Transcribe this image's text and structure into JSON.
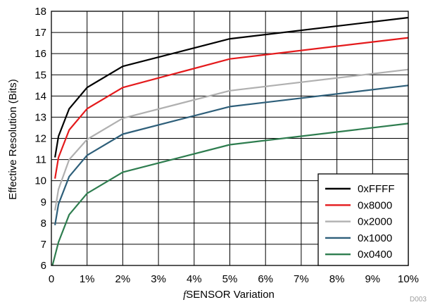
{
  "chart_data": {
    "type": "line",
    "xlabel_prefix": "f",
    "xlabel": "SENSOR  Variation",
    "ylabel": "Effective  Resolution (Bits)",
    "figure_code": "D003",
    "xlim": [
      0,
      10
    ],
    "ylim": [
      6,
      18
    ],
    "x_ticks": [
      "0",
      "1%",
      "2%",
      "3%",
      "4%",
      "5%",
      "6%",
      "7%",
      "8%",
      "9%",
      "10%"
    ],
    "y_ticks": [
      "6",
      "7",
      "8",
      "9",
      "10",
      "11",
      "12",
      "13",
      "14",
      "15",
      "16",
      "17",
      "18"
    ],
    "grid": true,
    "legend_position": "bottom-right",
    "series": [
      {
        "name": "0xFFFF",
        "color": "#000000",
        "x": [
          0.1,
          0.2,
          0.5,
          1,
          2,
          5,
          10
        ],
        "y": [
          11.1,
          12.1,
          13.4,
          14.4,
          15.4,
          16.7,
          17.7
        ]
      },
      {
        "name": "0x8000",
        "color": "#e41a1c",
        "x": [
          0.1,
          0.2,
          0.5,
          1,
          2,
          5,
          10
        ],
        "y": [
          10.1,
          11.1,
          12.4,
          13.4,
          14.4,
          15.75,
          16.75
        ]
      },
      {
        "name": "0x2000",
        "color": "#b0b0b0",
        "x": [
          0.1,
          0.2,
          0.5,
          1,
          2,
          5,
          10
        ],
        "y": [
          8.6,
          9.6,
          11.0,
          11.95,
          12.95,
          14.25,
          15.25
        ]
      },
      {
        "name": "0x1000",
        "color": "#2e5f7a",
        "x": [
          0.1,
          0.2,
          0.5,
          1,
          2,
          5,
          10
        ],
        "y": [
          7.9,
          8.9,
          10.2,
          11.2,
          12.2,
          13.5,
          14.5
        ]
      },
      {
        "name": "0x0400",
        "color": "#2e7d4f",
        "x": [
          0.03,
          0.2,
          0.5,
          1,
          2,
          5,
          10
        ],
        "y": [
          6.0,
          7.1,
          8.4,
          9.4,
          10.4,
          11.7,
          12.7
        ]
      }
    ]
  }
}
